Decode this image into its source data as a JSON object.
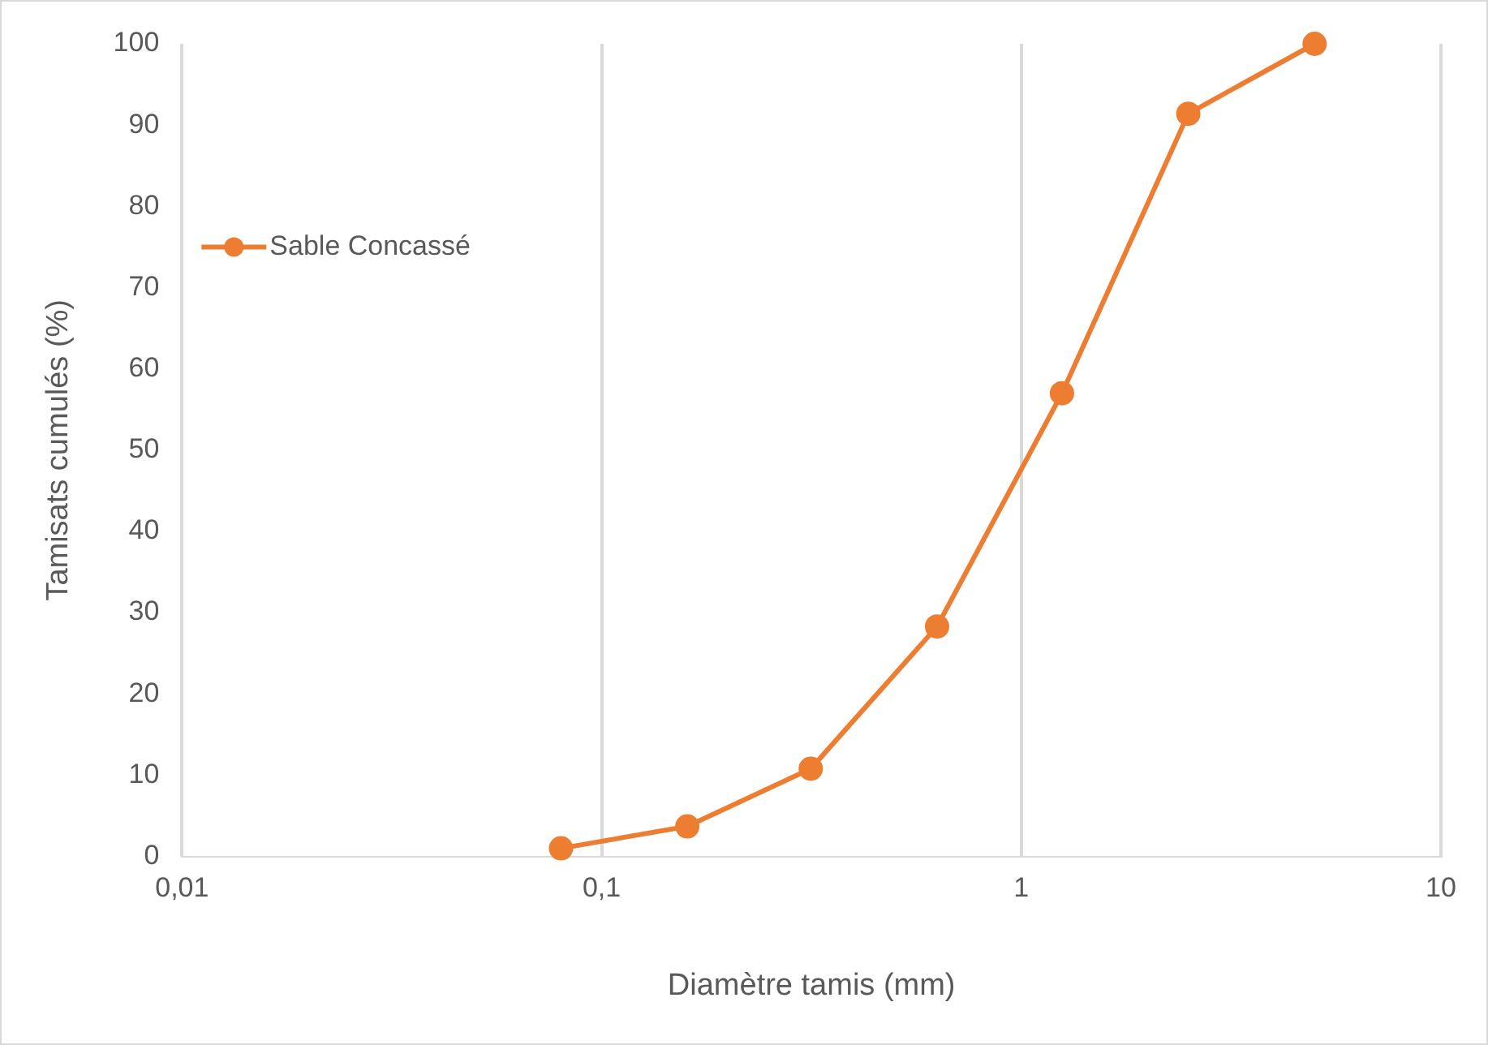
{
  "chart_data": {
    "type": "line",
    "xlabel": "Diamètre tamis (mm)",
    "ylabel": "Tamisats cumulés (%)",
    "x": [
      0.08,
      0.16,
      0.315,
      0.63,
      1.25,
      2.5,
      5
    ],
    "series": [
      {
        "name": "Sable Concassé",
        "color": "#ed7d31",
        "values": [
          1,
          3.7,
          10.8,
          28.3,
          57,
          91.4,
          100
        ]
      }
    ],
    "log": "x",
    "xlim": [
      0.01,
      10
    ],
    "xticks": [
      {
        "value": 0.01,
        "label": "0,01"
      },
      {
        "value": 0.1,
        "label": "0,1"
      },
      {
        "value": 1,
        "label": "1"
      },
      {
        "value": 10,
        "label": "10"
      }
    ],
    "ylim": [
      0,
      100
    ],
    "yticks": [
      0,
      10,
      20,
      30,
      40,
      50,
      60,
      70,
      80,
      90,
      100
    ],
    "grid": "x",
    "legend": "left",
    "marker": "circle",
    "line_style": "solid"
  }
}
